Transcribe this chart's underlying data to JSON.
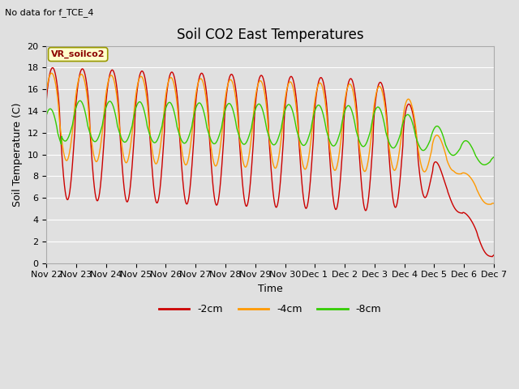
{
  "title": "Soil CO2 East Temperatures",
  "subtitle": "No data for f_TCE_4",
  "xlabel": "Time",
  "ylabel": "Soil Temperature (C)",
  "ylim": [
    0,
    20
  ],
  "xlim": [
    0,
    15
  ],
  "legend_label_box": "VR_soilco2",
  "series": {
    "2cm": {
      "color": "#cc0000",
      "label": "-2cm"
    },
    "4cm": {
      "color": "#ff9900",
      "label": "-4cm"
    },
    "8cm": {
      "color": "#33cc00",
      "label": "-8cm"
    }
  },
  "xtick_labels": [
    "Nov 22",
    "Nov 23",
    "Nov 24",
    "Nov 25",
    "Nov 26",
    "Nov 27",
    "Nov 28",
    "Nov 29",
    "Nov 30",
    "Dec 1",
    "Dec 2",
    "Dec 3",
    "Dec 4",
    "Dec 5",
    "Dec 6",
    "Dec 7"
  ],
  "yticks": [
    0,
    2,
    4,
    6,
    8,
    10,
    12,
    14,
    16,
    18,
    20
  ],
  "bg_color": "#e0e0e0",
  "plot_bg_color": "#e0e0e0",
  "grid_color": "#ffffff",
  "title_fontsize": 12,
  "axis_fontsize": 9,
  "tick_fontsize": 8
}
